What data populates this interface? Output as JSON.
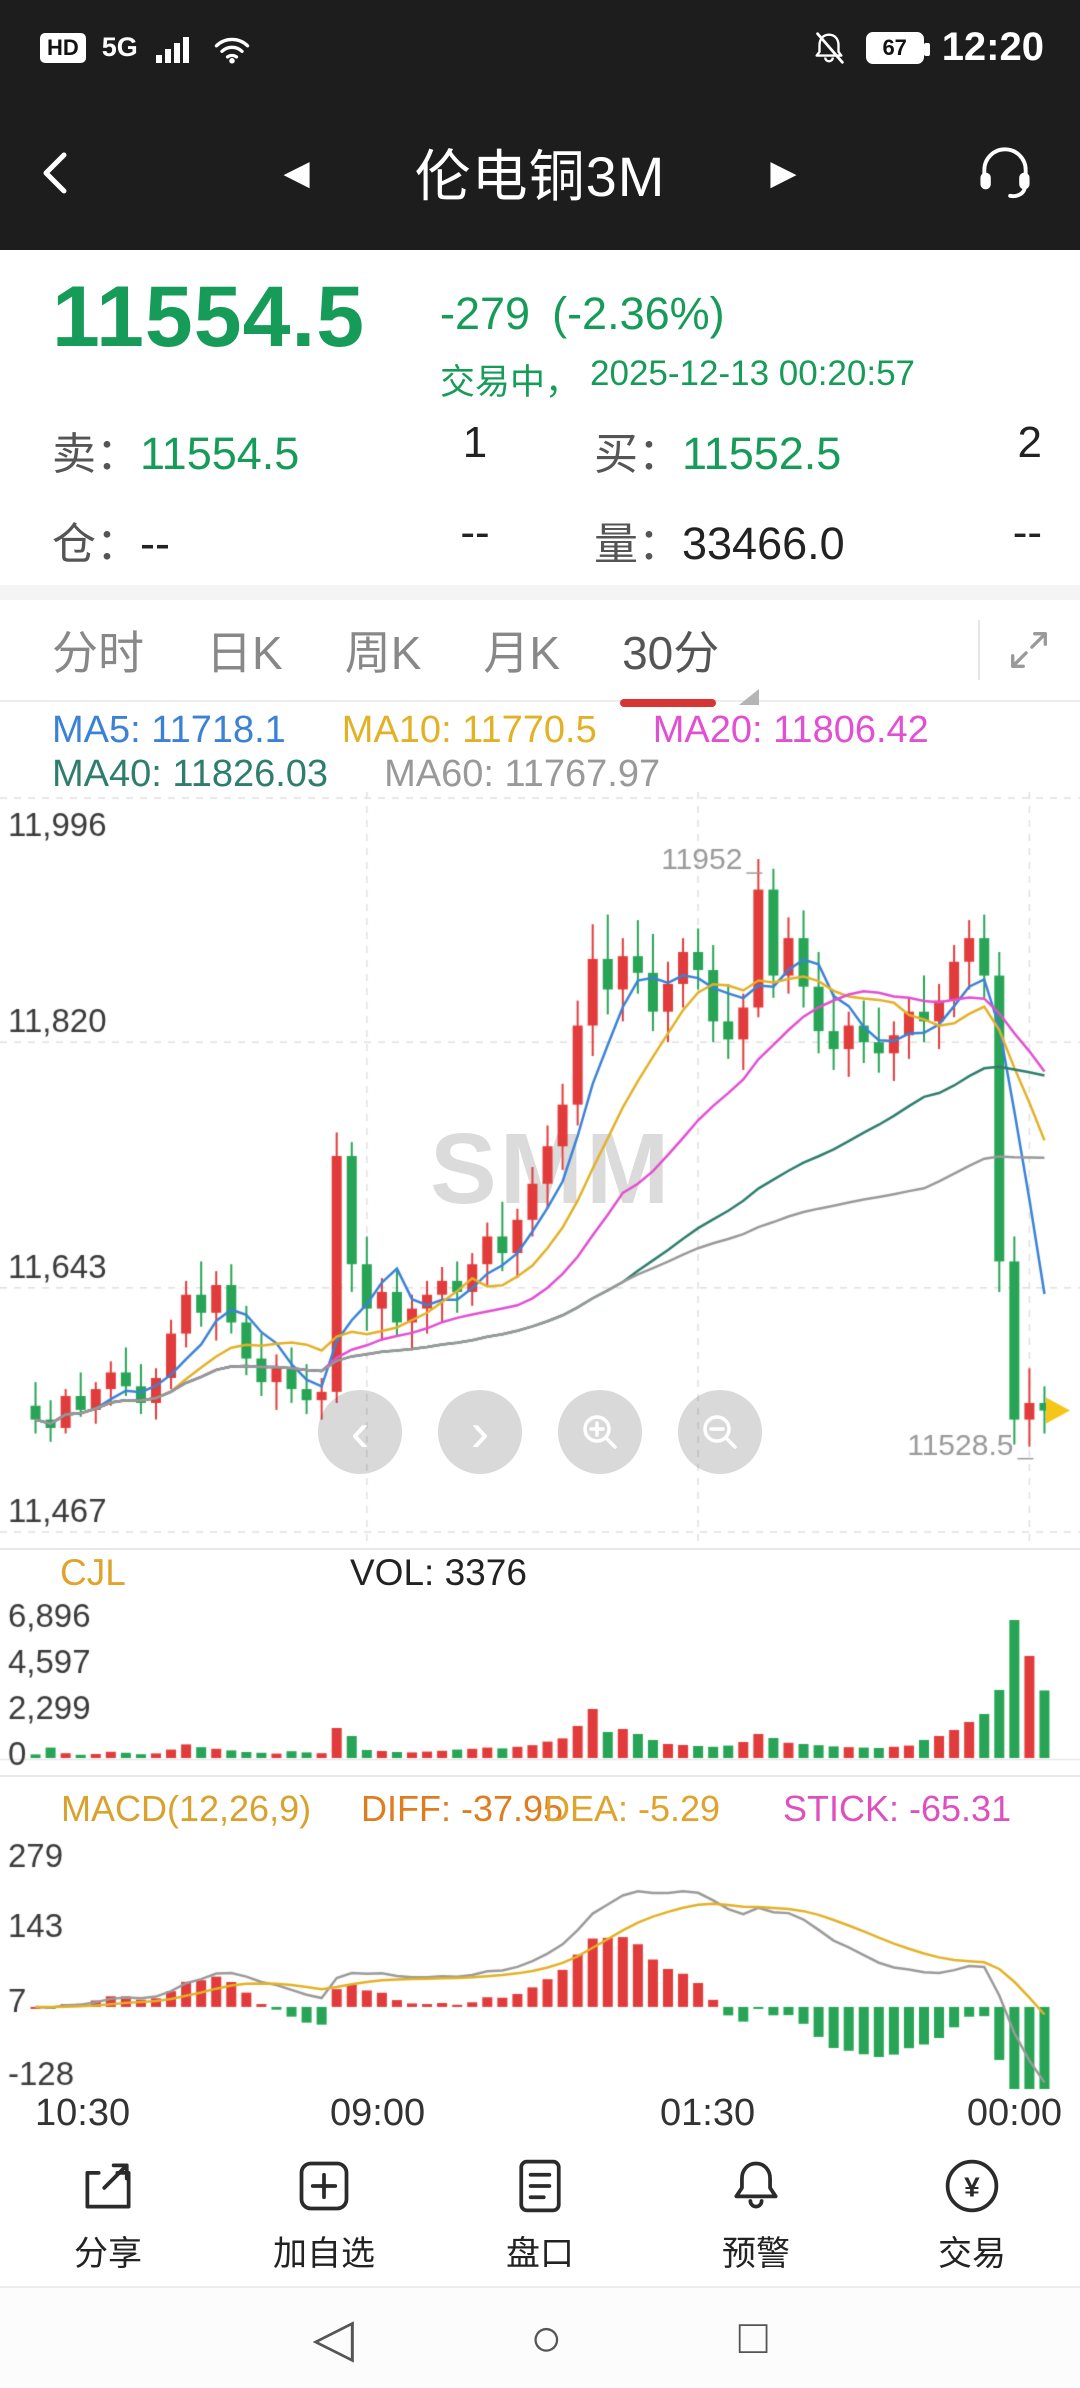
{
  "status_bar": {
    "carrier_badge": "HD",
    "network": "5G",
    "battery": "67",
    "time": "12:20"
  },
  "header": {
    "title": "伦电铜3M"
  },
  "icons": {
    "prev": "◀",
    "next": "▶",
    "nav_back": "◁",
    "nav_home": "○",
    "nav_recents": "□",
    "trade_symbol": "¥",
    "pan_left": "‹",
    "pan_right": "›"
  },
  "quote": {
    "price": "11554.5",
    "change": "-279",
    "change_pct": "(-2.36%)",
    "status": "交易中，",
    "datetime": "2025-12-13 00:20:57",
    "ask_label": "卖：",
    "ask_price": "11554.5",
    "ask_qty": "1",
    "bid_label": "买：",
    "bid_price": "11552.5",
    "bid_qty": "2",
    "pos_label": "仓：",
    "pos_value": "--",
    "pos_value2": "--",
    "vol_label": "量：",
    "vol_value": "33466.0",
    "vol_value2": "--"
  },
  "tabs": {
    "items": [
      "分时",
      "日K",
      "周K",
      "月K",
      "30分"
    ],
    "selected": "30分"
  },
  "indicators": {
    "ma": [
      {
        "label": "MA5: 11718.1"
      },
      {
        "label": "MA10: 11770.5"
      },
      {
        "label": "MA20: 11806.42"
      },
      {
        "label": "MA40: 11826.03"
      },
      {
        "label": "MA60: 11767.97"
      }
    ]
  },
  "watermark": "SMM",
  "x_labels": [
    "10:30",
    "09:00",
    "01:30",
    "00:00"
  ],
  "toolbar": {
    "items": [
      "分享",
      "加自选",
      "盘口",
      "预警",
      "交易"
    ]
  },
  "colors": {
    "up": "#e23b3b",
    "down": "#27a455",
    "ma5": "#3b82d6",
    "ma10": "#e3b126",
    "ma20": "#e24fd2",
    "ma40": "#2f7d6d",
    "ma60": "#999999",
    "grid": "#e0e0e0",
    "tick": "#3a3a3a",
    "annotation": "#9a9a9a",
    "marker": "#f5c518",
    "macd_diff_line": "#9a9a9a",
    "macd_dea_line": "#e3b126",
    "accent_green": "#169c58",
    "accent_red": "#d83434"
  },
  "chart_data": [
    {
      "type": "candlestick",
      "interval": "30分",
      "ymin": 11467,
      "ymax": 11996,
      "yticks": [
        "11,996",
        "11,820",
        "11,643",
        "11,467"
      ],
      "ytick_values": [
        11996,
        11820,
        11643,
        11467
      ],
      "grid_vertical_indices": [
        22,
        44,
        66
      ],
      "high": {
        "index": 48,
        "label": "11952"
      },
      "low": {
        "index": 66,
        "label": "11528.5"
      },
      "ma_periods": [
        5,
        10,
        20,
        40,
        60
      ],
      "candles": [
        [
          11558,
          11575,
          11538,
          11548
        ],
        [
          11548,
          11562,
          11532,
          11542
        ],
        [
          11542,
          11570,
          11538,
          11565
        ],
        [
          11565,
          11582,
          11550,
          11555
        ],
        [
          11555,
          11575,
          11545,
          11570
        ],
        [
          11570,
          11590,
          11558,
          11582
        ],
        [
          11582,
          11600,
          11565,
          11572
        ],
        [
          11572,
          11588,
          11552,
          11560
        ],
        [
          11560,
          11585,
          11548,
          11578
        ],
        [
          11578,
          11620,
          11570,
          11610
        ],
        [
          11610,
          11648,
          11600,
          11638
        ],
        [
          11638,
          11662,
          11615,
          11625
        ],
        [
          11625,
          11655,
          11605,
          11645
        ],
        [
          11645,
          11660,
          11610,
          11618
        ],
        [
          11618,
          11630,
          11580,
          11592
        ],
        [
          11592,
          11610,
          11565,
          11575
        ],
        [
          11575,
          11595,
          11555,
          11585
        ],
        [
          11585,
          11600,
          11560,
          11570
        ],
        [
          11570,
          11588,
          11552,
          11562
        ],
        [
          11562,
          11578,
          11548,
          11568
        ],
        [
          11568,
          11755,
          11560,
          11738
        ],
        [
          11738,
          11748,
          11640,
          11660
        ],
        [
          11660,
          11680,
          11612,
          11628
        ],
        [
          11628,
          11650,
          11605,
          11640
        ],
        [
          11640,
          11655,
          11608,
          11618
        ],
        [
          11618,
          11638,
          11598,
          11628
        ],
        [
          11628,
          11648,
          11610,
          11638
        ],
        [
          11638,
          11658,
          11618,
          11648
        ],
        [
          11648,
          11662,
          11625,
          11640
        ],
        [
          11640,
          11668,
          11630,
          11660
        ],
        [
          11660,
          11690,
          11645,
          11680
        ],
        [
          11680,
          11705,
          11655,
          11668
        ],
        [
          11668,
          11700,
          11650,
          11692
        ],
        [
          11692,
          11730,
          11680,
          11718
        ],
        [
          11718,
          11760,
          11700,
          11745
        ],
        [
          11745,
          11790,
          11728,
          11775
        ],
        [
          11775,
          11850,
          11760,
          11832
        ],
        [
          11832,
          11905,
          11810,
          11880
        ],
        [
          11880,
          11912,
          11840,
          11858
        ],
        [
          11858,
          11895,
          11835,
          11882
        ],
        [
          11882,
          11908,
          11855,
          11870
        ],
        [
          11870,
          11898,
          11828,
          11842
        ],
        [
          11842,
          11878,
          11820,
          11862
        ],
        [
          11862,
          11895,
          11845,
          11885
        ],
        [
          11885,
          11902,
          11858,
          11872
        ],
        [
          11872,
          11890,
          11820,
          11835
        ],
        [
          11835,
          11862,
          11808,
          11822
        ],
        [
          11822,
          11855,
          11800,
          11845
        ],
        [
          11845,
          11952,
          11838,
          11930
        ],
        [
          11930,
          11945,
          11852,
          11868
        ],
        [
          11868,
          11910,
          11855,
          11895
        ],
        [
          11895,
          11915,
          11845,
          11860
        ],
        [
          11860,
          11885,
          11812,
          11828
        ],
        [
          11828,
          11855,
          11800,
          11815
        ],
        [
          11815,
          11842,
          11795,
          11832
        ],
        [
          11832,
          11850,
          11805,
          11820
        ],
        [
          11820,
          11845,
          11798,
          11812
        ],
        [
          11812,
          11835,
          11792,
          11825
        ],
        [
          11825,
          11852,
          11808,
          11842
        ],
        [
          11842,
          11868,
          11820,
          11835
        ],
        [
          11835,
          11862,
          11815,
          11850
        ],
        [
          11850,
          11890,
          11838,
          11878
        ],
        [
          11878,
          11908,
          11858,
          11895
        ],
        [
          11895,
          11912,
          11852,
          11868
        ],
        [
          11868,
          11885,
          11640,
          11662
        ],
        [
          11662,
          11680,
          11530,
          11548
        ],
        [
          11548,
          11585,
          11528.5,
          11560
        ],
        [
          11560,
          11572,
          11538,
          11554.5
        ]
      ]
    },
    {
      "type": "bar",
      "name": "CJL",
      "current_label": "VOL: 3376",
      "ymax": 6896,
      "yticks": [
        "6,896",
        "4,597",
        "2,299",
        "0"
      ],
      "ytick_values": [
        6896,
        4597,
        2299,
        0
      ],
      "volumes": [
        180,
        520,
        240,
        160,
        200,
        310,
        260,
        190,
        230,
        420,
        680,
        540,
        460,
        380,
        300,
        260,
        220,
        340,
        280,
        240,
        1500,
        1100,
        400,
        350,
        300,
        280,
        320,
        360,
        420,
        460,
        520,
        480,
        560,
        640,
        820,
        980,
        1600,
        2450,
        1300,
        1450,
        1200,
        900,
        700,
        650,
        600,
        560,
        620,
        800,
        1200,
        1000,
        760,
        700,
        640,
        580,
        540,
        520,
        500,
        560,
        620,
        900,
        1100,
        1400,
        1800,
        2200,
        3400,
        6896,
        5100,
        3376
      ]
    },
    {
      "type": "macd",
      "name": "MACD(12,26,9)",
      "diff_label": "DIFF: -37.95",
      "dea_label": "DEA: -5.29",
      "stick_label": "STICK: -65.31",
      "params": [
        12,
        26,
        9
      ],
      "ymin": -128,
      "ymax": 279,
      "yticks": [
        "279",
        "143",
        "7",
        "-128"
      ],
      "ytick_values": [
        279,
        143,
        7,
        -128
      ],
      "display_scale": 3
    }
  ]
}
